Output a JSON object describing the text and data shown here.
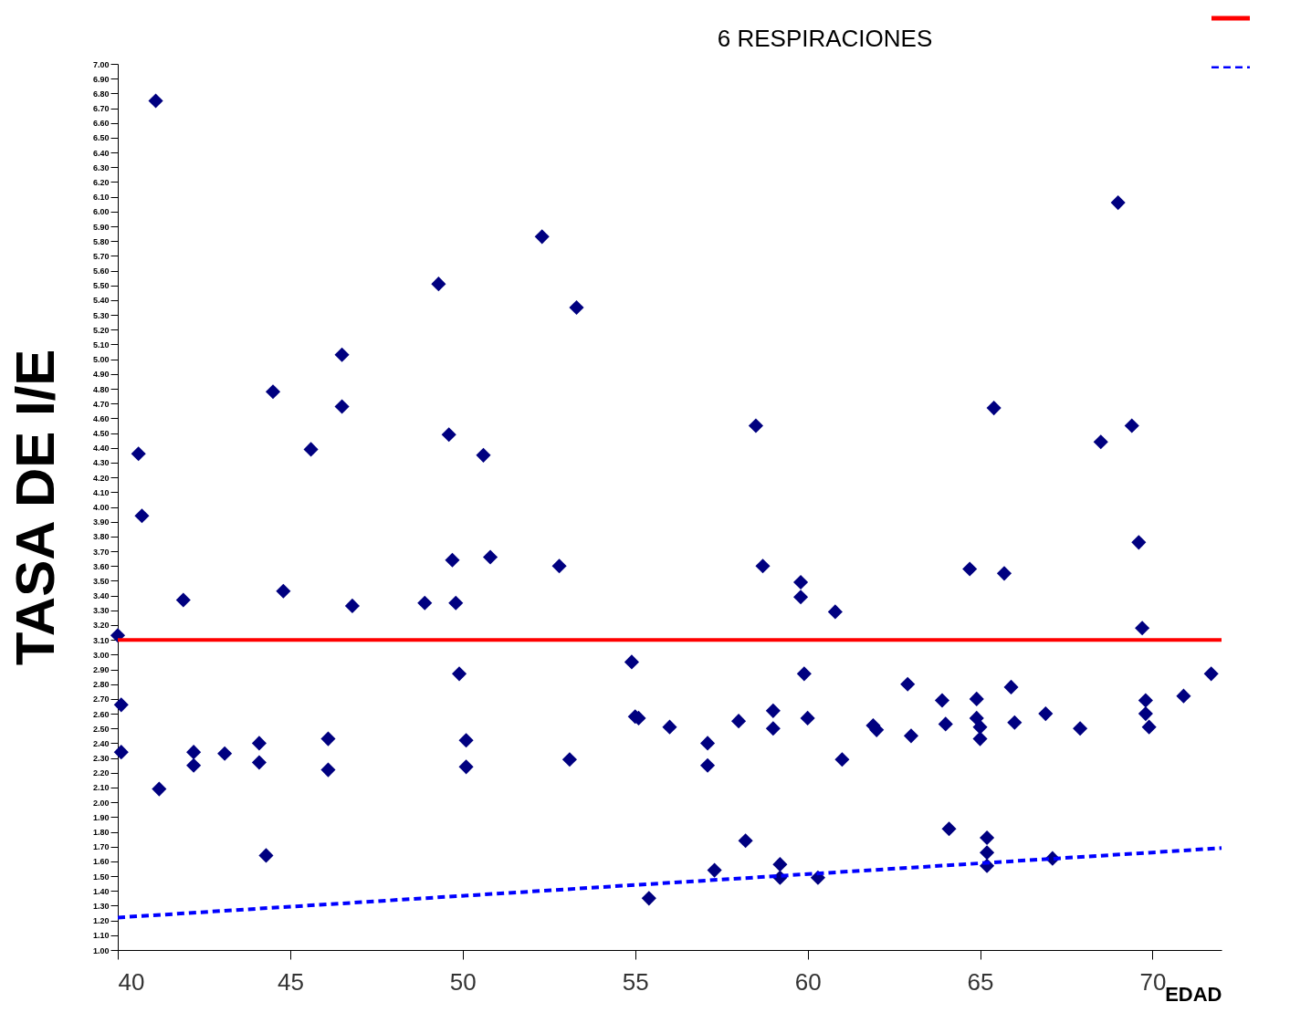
{
  "chart_data": {
    "type": "scatter",
    "title": "6 RESPIRACIONES",
    "xlabel": "EDAD",
    "ylabel": "TASA DE I/E",
    "xlim": [
      40,
      72
    ],
    "xticks": [
      40,
      45,
      50,
      55,
      60,
      65,
      70
    ],
    "ylim": [
      1,
      7
    ],
    "yticks": [
      {
        "value": 1,
        "label": "1.00"
      },
      {
        "value": 1.1,
        "label": "1.10"
      },
      {
        "value": 1.2,
        "label": "1.20"
      },
      {
        "value": 1.3,
        "label": "1.30"
      },
      {
        "value": 1.4,
        "label": "1.40"
      },
      {
        "value": 1.5,
        "label": "1.50"
      },
      {
        "value": 1.6,
        "label": "1.60"
      },
      {
        "value": 1.7,
        "label": "1.70"
      },
      {
        "value": 1.8,
        "label": "1.80"
      },
      {
        "value": 1.9,
        "label": "1.90"
      },
      {
        "value": 2,
        "label": "2.00"
      },
      {
        "value": 2.1,
        "label": "2.10"
      },
      {
        "value": 2.2,
        "label": "2.20"
      },
      {
        "value": 2.3,
        "label": "2.30"
      },
      {
        "value": 2.4,
        "label": "2.40"
      },
      {
        "value": 2.5,
        "label": "2.50"
      },
      {
        "value": 2.6,
        "label": "2.60"
      },
      {
        "value": 2.7,
        "label": "2.70"
      },
      {
        "value": 2.8,
        "label": "2.80"
      },
      {
        "value": 2.9,
        "label": "2.90"
      },
      {
        "value": 3,
        "label": "3.00"
      },
      {
        "value": 3.1,
        "label": "3.10"
      },
      {
        "value": 3.2,
        "label": "3.20"
      },
      {
        "value": 3.3,
        "label": "3.30"
      },
      {
        "value": 3.4,
        "label": "3.40"
      },
      {
        "value": 3.5,
        "label": "3.50"
      },
      {
        "value": 3.6,
        "label": "3.60"
      },
      {
        "value": 3.7,
        "label": "3.70"
      },
      {
        "value": 3.8,
        "label": "3.80"
      },
      {
        "value": 3.9,
        "label": "3.90"
      },
      {
        "value": 4,
        "label": "4.00"
      },
      {
        "value": 4.1,
        "label": "4.10"
      },
      {
        "value": 4.2,
        "label": "4.20"
      },
      {
        "value": 4.3,
        "label": "4.30"
      },
      {
        "value": 4.4,
        "label": "4.40"
      },
      {
        "value": 4.5,
        "label": "4.50"
      },
      {
        "value": 4.6,
        "label": "4.60"
      },
      {
        "value": 4.7,
        "label": "4.70"
      },
      {
        "value": 4.8,
        "label": "4.80"
      },
      {
        "value": 4.9,
        "label": "4.90"
      },
      {
        "value": 5,
        "label": "5.00"
      },
      {
        "value": 5.1,
        "label": "5.10"
      },
      {
        "value": 5.2,
        "label": "5.20"
      },
      {
        "value": 5.3,
        "label": "5.30"
      },
      {
        "value": 5.4,
        "label": "5.40"
      },
      {
        "value": 5.5,
        "label": "5.50"
      },
      {
        "value": 5.6,
        "label": "5.60"
      },
      {
        "value": 5.7,
        "label": "5.70"
      },
      {
        "value": 5.8,
        "label": "5.80"
      },
      {
        "value": 5.9,
        "label": "5.90"
      },
      {
        "value": 6,
        "label": "6.00"
      },
      {
        "value": 6.1,
        "label": "6.10"
      },
      {
        "value": 6.2,
        "label": "6.20"
      },
      {
        "value": 6.3,
        "label": "6.30"
      },
      {
        "value": 6.4,
        "label": "6.40"
      },
      {
        "value": 6.5,
        "label": "6.50"
      },
      {
        "value": 6.6,
        "label": "6.60"
      },
      {
        "value": 6.7,
        "label": "6.70"
      },
      {
        "value": 6.8,
        "label": "6.80"
      },
      {
        "value": 6.9,
        "label": "6.90"
      },
      {
        "value": 7,
        "label": "7.00"
      }
    ],
    "grid": false,
    "marker": "diamond",
    "series": [
      {
        "color": "#000080",
        "x": [
          41.1,
          40.6,
          40.7,
          40,
          40.1,
          40.1,
          41.2,
          41.9,
          42.2,
          42.2,
          43.1,
          44.1,
          44.1,
          44.3,
          44.5,
          44.8,
          45.6,
          46.1,
          46.1,
          46.5,
          46.5,
          46.8,
          48.9,
          49.3,
          49.6,
          49.7,
          49.8,
          49.9,
          50.1,
          50.1,
          50.6,
          50.8,
          52.3,
          52.8,
          53.3,
          53.1,
          54.9,
          55.0,
          55.1,
          55.4,
          56.0,
          57.1,
          57.1,
          57.3,
          58.0,
          58.2,
          58.5,
          58.7,
          59.0,
          59.0,
          59.2,
          59.2,
          59.8,
          59.8,
          59.9,
          60.0,
          60.3,
          60.8,
          61.0,
          61.9,
          62.0,
          62.9,
          63.0,
          63.9,
          64.0,
          64.1,
          64.7,
          64.9,
          64.9,
          65.0,
          65.0,
          65.2,
          65.2,
          65.2,
          65.4,
          65.7,
          65.9,
          66.0,
          66.9,
          67.1,
          67.9,
          68.5,
          69.0,
          69.4,
          69.6,
          69.7,
          69.8,
          69.8,
          69.9,
          70.9,
          71.7
        ],
        "values": [
          6.75,
          4.36,
          3.94,
          3.13,
          2.66,
          2.34,
          2.09,
          3.37,
          2.34,
          2.25,
          2.33,
          2.4,
          2.27,
          1.64,
          4.78,
          3.43,
          4.39,
          2.43,
          2.22,
          5.03,
          4.68,
          3.33,
          3.35,
          5.51,
          4.49,
          3.64,
          3.35,
          2.87,
          2.42,
          2.24,
          4.35,
          3.66,
          5.83,
          3.6,
          5.35,
          2.29,
          2.95,
          2.58,
          2.57,
          1.35,
          2.51,
          2.4,
          2.25,
          1.54,
          2.55,
          1.74,
          4.55,
          3.6,
          2.62,
          2.5,
          1.58,
          1.49,
          3.49,
          3.39,
          2.87,
          2.57,
          1.49,
          3.29,
          2.29,
          2.52,
          2.49,
          2.8,
          2.45,
          2.69,
          2.53,
          1.82,
          3.58,
          2.7,
          2.57,
          2.51,
          2.43,
          1.76,
          1.66,
          1.57,
          4.67,
          3.55,
          2.78,
          2.54,
          2.6,
          1.62,
          2.5,
          4.44,
          6.06,
          4.55,
          3.76,
          3.18,
          2.69,
          2.6,
          2.51,
          2.72,
          2.87
        ]
      },
      {
        "type": "line",
        "color": "#0000ff",
        "line_style": "dashed",
        "marker": "none",
        "x": [
          40,
          72
        ],
        "values": [
          1.22,
          1.69
        ]
      }
    ],
    "ref_lines": [
      {
        "axis": "y",
        "value": 3.1,
        "color": "#ff0000",
        "line_style": "solid"
      }
    ]
  }
}
